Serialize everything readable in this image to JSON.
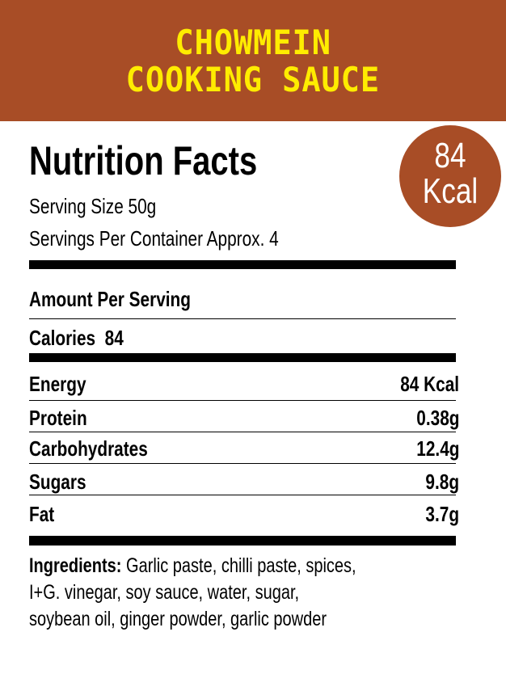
{
  "header": {
    "line1": "CHOWMEIN",
    "line2": "COOKING SAUCE",
    "background": "#A84D26",
    "text_color": "#FFEC00"
  },
  "title": "Nutrition Facts",
  "serving_size": "Serving Size 50g",
  "servings_per_container": "Servings Per Container Approx. 4",
  "badge": {
    "value": "84",
    "unit": "Kcal"
  },
  "amount_per_serving": "Amount Per Serving",
  "calories": "Calories  84",
  "nutrients": [
    {
      "label": "Energy",
      "value": "84 Kcal"
    },
    {
      "label": "Protein",
      "value": "0.38g"
    },
    {
      "label": "Carbohydrates",
      "value": "12.4g"
    },
    {
      "label": "Sugars",
      "value": "9.8g"
    },
    {
      "label": "Fat",
      "value": "3.7g"
    }
  ],
  "ingredients": {
    "label": "Ingredients:",
    "line1": "Garlic paste, chilli paste, spices,",
    "line2": "I+G. vinegar, soy sauce, water, sugar,",
    "line3": "soybean oil, ginger powder, garlic powder"
  }
}
